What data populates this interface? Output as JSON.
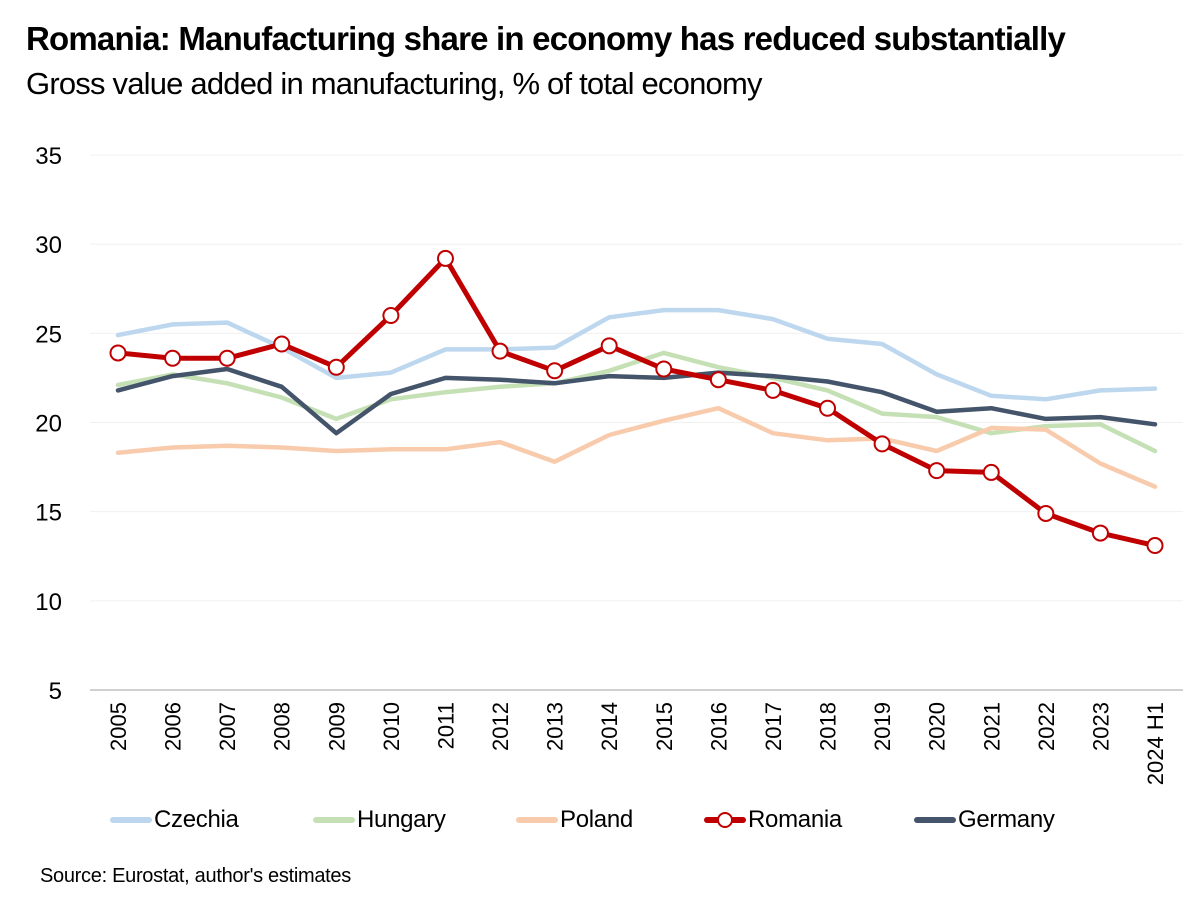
{
  "header": {
    "title": "Romania: Manufacturing share in economy has reduced substantially",
    "subtitle": "Gross value added in manufacturing, % of total economy"
  },
  "footer": {
    "source": "Source: Eurostat, author's estimates"
  },
  "chart_data": {
    "type": "line",
    "title": "Romania: Manufacturing share in economy has reduced substantially",
    "subtitle": "Gross value added in manufacturing, % of total economy",
    "xlabel": "",
    "ylabel": "",
    "ylim": [
      5,
      35
    ],
    "yticks": [
      5,
      10,
      15,
      20,
      25,
      30,
      35
    ],
    "grid": true,
    "legend": "bottom",
    "categories": [
      "2005",
      "2006",
      "2007",
      "2008",
      "2009",
      "2010",
      "2011",
      "2012",
      "2013",
      "2014",
      "2015",
      "2016",
      "2017",
      "2018",
      "2019",
      "2020",
      "2021",
      "2022",
      "2023",
      "2024 H1"
    ],
    "series": [
      {
        "name": "Czechia",
        "color": "#BDD7EE",
        "marker": "none",
        "values": [
          24.9,
          25.5,
          25.6,
          24.2,
          22.5,
          22.8,
          24.1,
          24.1,
          24.2,
          25.9,
          26.3,
          26.3,
          25.8,
          24.7,
          24.4,
          22.7,
          21.5,
          21.3,
          21.8,
          21.9
        ]
      },
      {
        "name": "Hungary",
        "color": "#C5E0B4",
        "marker": "none",
        "values": [
          22.1,
          22.7,
          22.2,
          21.4,
          20.2,
          21.3,
          21.7,
          22.0,
          22.2,
          22.9,
          23.9,
          23.1,
          22.5,
          21.8,
          20.5,
          20.3,
          19.4,
          19.8,
          19.9,
          18.4
        ]
      },
      {
        "name": "Poland",
        "color": "#F8CBAD",
        "marker": "none",
        "values": [
          18.3,
          18.6,
          18.7,
          18.6,
          18.4,
          18.5,
          18.5,
          18.9,
          17.8,
          19.3,
          20.1,
          20.8,
          19.4,
          19.0,
          19.1,
          18.4,
          19.7,
          19.6,
          17.7,
          16.4
        ]
      },
      {
        "name": "Romania",
        "color": "#C00000",
        "marker": "circle",
        "values": [
          23.9,
          23.6,
          23.6,
          24.4,
          23.1,
          26.0,
          29.2,
          24.0,
          22.9,
          24.3,
          23.0,
          22.4,
          21.8,
          20.8,
          18.8,
          17.3,
          17.2,
          14.9,
          13.8,
          13.1
        ]
      },
      {
        "name": "Germany",
        "color": "#44546A",
        "marker": "none",
        "values": [
          21.8,
          22.6,
          23.0,
          22.0,
          19.4,
          21.6,
          22.5,
          22.4,
          22.2,
          22.6,
          22.5,
          22.8,
          22.6,
          22.3,
          21.7,
          20.6,
          20.8,
          20.2,
          20.3,
          19.9
        ]
      }
    ]
  }
}
